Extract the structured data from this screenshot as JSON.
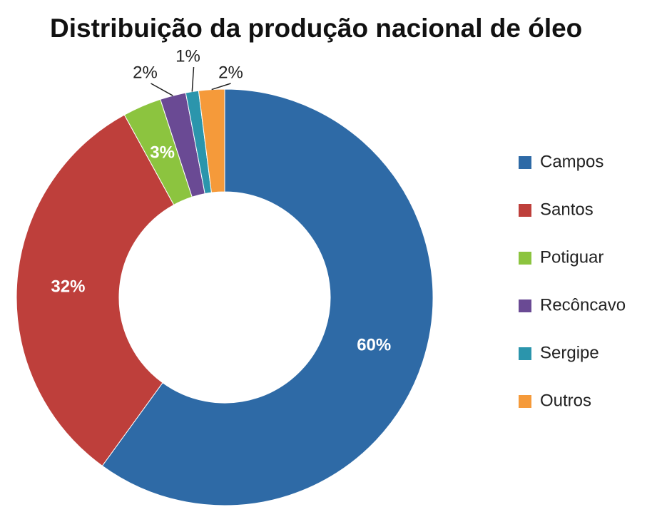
{
  "chart_data": {
    "type": "donut",
    "title": "Distribuição da produção nacional de óleo",
    "categories": [
      "Campos",
      "Santos",
      "Potiguar",
      "Recôncavo",
      "Sergipe",
      "Outros"
    ],
    "values": [
      60,
      32,
      3,
      2,
      1,
      2
    ],
    "value_labels": [
      "60%",
      "32%",
      "3%",
      "2%",
      "1%",
      "2%"
    ],
    "colors": [
      "#2e6aa6",
      "#be3f3b",
      "#8cc43f",
      "#6a4a94",
      "#2b95ac",
      "#f59a3a"
    ],
    "legend": "right"
  }
}
